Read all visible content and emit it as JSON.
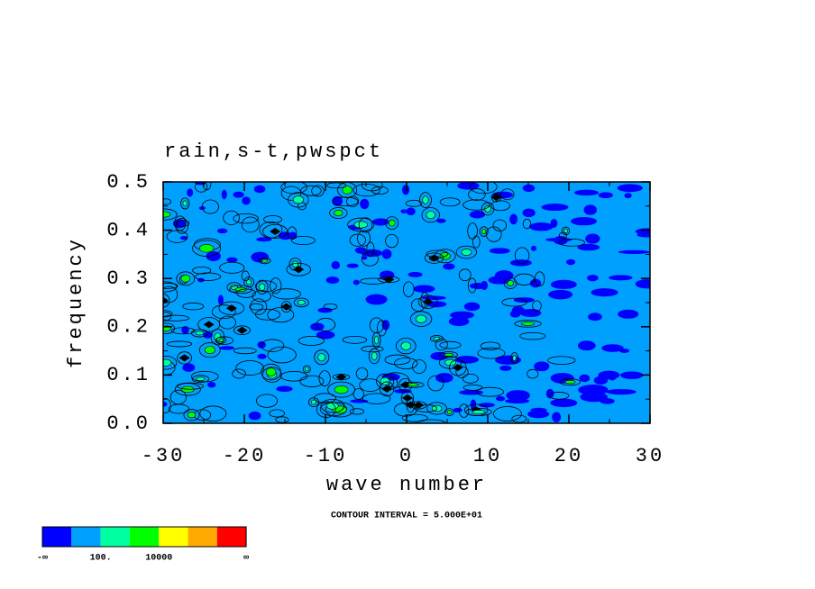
{
  "chart_data": {
    "type": "contour",
    "title": "rain,s-t,pwspct",
    "x_label": "wave number",
    "y_label": "frequency",
    "note": "CONTOUR INTERVAL = 5.000E+01",
    "xlim": [
      -30,
      30
    ],
    "xticks": [
      -30,
      -20,
      -10,
      0,
      10,
      20,
      30
    ],
    "ylim": [
      0,
      0.5
    ],
    "yticks": [
      {
        "value": 0,
        "label": "0.0"
      },
      0.1,
      0.2,
      0.3,
      0.4,
      0.5
    ],
    "colorbar": {
      "colors": [
        "#0000ff",
        "#00a0ff",
        "#00ffa0",
        "#00ff00",
        "#ffff00",
        "#ffaa00",
        "#ff0000"
      ],
      "labels": [
        "-∞",
        "100.",
        "10000",
        "∞"
      ]
    }
  }
}
